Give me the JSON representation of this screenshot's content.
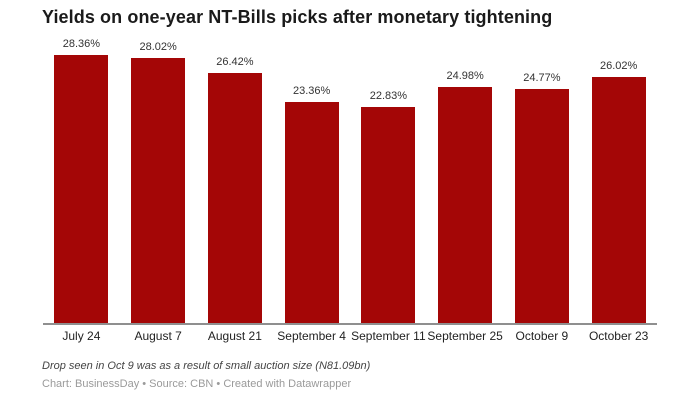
{
  "title": "Yields on one-year NT-Bills picks after monetary tightening",
  "chart_data": {
    "type": "bar",
    "title": "Yields on one-year NT-Bills picks after monetary tightening",
    "categories": [
      "July 24",
      "August 7",
      "August 21",
      "September 4",
      "September 11",
      "September 25",
      "October 9",
      "October 23"
    ],
    "values": [
      28.36,
      28.02,
      26.42,
      23.36,
      22.83,
      24.98,
      24.77,
      26.02
    ],
    "value_labels": [
      "28.36%",
      "28.02%",
      "26.42%",
      "23.36%",
      "22.83%",
      "24.98%",
      "24.77%",
      "26.02%"
    ],
    "xlabel": "",
    "ylabel": "",
    "ylim": [
      0,
      28.36
    ],
    "grid": false,
    "legend_position": "none",
    "bar_color": "#a40606",
    "axis_line_color": "#8f8f8f"
  },
  "footer": {
    "note": "Drop seen in Oct 9 was as a result of small auction size (N81.09bn)",
    "attribution": "Chart: BusinessDay • Source: CBN • Created with Datawrapper"
  }
}
